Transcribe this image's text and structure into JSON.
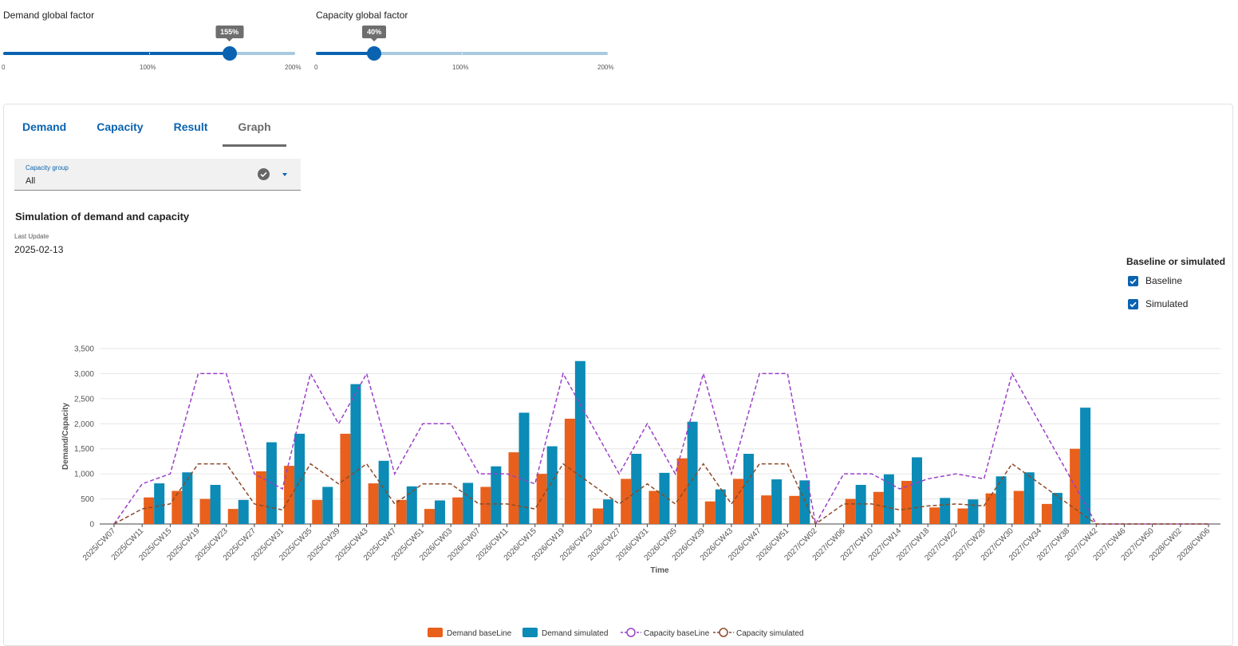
{
  "sliders": {
    "demand": {
      "label": "Demand global factor",
      "value_label": "155%",
      "value": 155,
      "max": 200,
      "scale": [
        "0",
        "100%",
        "200%"
      ]
    },
    "capacity": {
      "label": "Capacity global factor",
      "value_label": "40%",
      "value": 40,
      "max": 200,
      "scale": [
        "0",
        "100%",
        "200%"
      ]
    }
  },
  "tabs": [
    "Demand",
    "Capacity",
    "Result",
    "Graph"
  ],
  "active_tab": "Graph",
  "capacity_select": {
    "label": "Capacity group",
    "value": "All"
  },
  "chart_title": "Simulation of demand and capacity",
  "last_update": {
    "label": "Last Update",
    "value": "2025-02-13"
  },
  "filter": {
    "title": "Baseline or simulated",
    "options": [
      "Baseline",
      "Simulated"
    ]
  },
  "colors": {
    "accent": "#0a63b0",
    "demand_baseline": "#e8601c",
    "demand_simulated": "#0b8bb5",
    "capacity_baseline": "#9b3fc8",
    "capacity_simulated": "#8b4b2a"
  },
  "icons": {
    "select_status": "check-circle-icon",
    "select_open": "caret-down-icon"
  },
  "chart_data": {
    "type": "bar",
    "xlabel": "Time",
    "ylabel": "Demand/Capacity",
    "ylim": [
      0,
      3500
    ],
    "yticks": [
      "0",
      "500",
      "1,000",
      "1,500",
      "2,000",
      "2,500",
      "3,000",
      "3,500"
    ],
    "grid": true,
    "legend_position": "bottom",
    "categories": [
      "2025/CW07",
      "2025/CW11",
      "2025/CW15",
      "2025/CW19",
      "2025/CW23",
      "2025/CW27",
      "2025/CW31",
      "2025/CW35",
      "2025/CW39",
      "2025/CW43",
      "2025/CW47",
      "2025/CW51",
      "2026/CW03",
      "2026/CW07",
      "2026/CW11",
      "2026/CW15",
      "2026/CW19",
      "2026/CW23",
      "2026/CW27",
      "2026/CW31",
      "2026/CW35",
      "2026/CW39",
      "2026/CW43",
      "2026/CW47",
      "2026/CW51",
      "2027/CW02",
      "2027/CW06",
      "2027/CW10",
      "2027/CW14",
      "2027/CW18",
      "2027/CW22",
      "2027/CW26",
      "2027/CW30",
      "2027/CW34",
      "2027/CW38",
      "2027/CW42",
      "2027/CW46",
      "2027/CW50",
      "2028/CW02",
      "2028/CW06"
    ],
    "series": [
      {
        "name": "Demand baseLine",
        "kind": "bar",
        "values": [
          0,
          530,
          660,
          500,
          300,
          1050,
          1160,
          480,
          1800,
          810,
          480,
          300,
          530,
          740,
          1430,
          1000,
          2100,
          310,
          900,
          660,
          1310,
          450,
          900,
          570,
          560,
          0,
          500,
          640,
          860,
          330,
          310,
          610,
          660,
          400,
          1500,
          0,
          0,
          0,
          0,
          0
        ]
      },
      {
        "name": "Demand simulated",
        "kind": "bar",
        "values": [
          0,
          810,
          1030,
          780,
          480,
          1630,
          1800,
          740,
          2790,
          1260,
          750,
          470,
          820,
          1150,
          2220,
          1550,
          3250,
          490,
          1400,
          1020,
          2040,
          690,
          1400,
          890,
          870,
          0,
          780,
          990,
          1330,
          520,
          490,
          950,
          1030,
          620,
          2320,
          0,
          0,
          0,
          0,
          0
        ]
      },
      {
        "name": "Capacity baseLine",
        "kind": "line",
        "values": [
          0,
          800,
          1000,
          3000,
          3000,
          1000,
          700,
          3000,
          2000,
          3000,
          1000,
          2000,
          2000,
          1000,
          1000,
          800,
          3000,
          2000,
          1000,
          2000,
          1000,
          3000,
          1000,
          3000,
          3000,
          0,
          1000,
          1000,
          700,
          900,
          1000,
          900,
          3000,
          2000,
          1000,
          0,
          0,
          0,
          0,
          0
        ]
      },
      {
        "name": "Capacity simulated",
        "kind": "line",
        "values": [
          0,
          300,
          400,
          1200,
          1200,
          400,
          280,
          1200,
          800,
          1200,
          400,
          800,
          800,
          400,
          400,
          300,
          1200,
          800,
          400,
          800,
          400,
          1200,
          400,
          1200,
          1200,
          0,
          400,
          400,
          280,
          360,
          400,
          360,
          1200,
          800,
          400,
          0,
          0,
          0,
          0,
          0
        ]
      }
    ]
  }
}
